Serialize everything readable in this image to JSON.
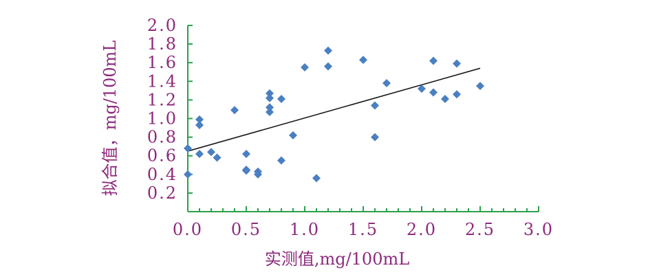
{
  "chart_data": {
    "type": "scatter",
    "xlabel": "实测值,mg/100mL",
    "ylabel": "拟合值，mg/100mL",
    "xlim": [
      0,
      3.0
    ],
    "ylim": [
      0,
      2.0
    ],
    "x_ticks": [
      "0.0",
      "0.5",
      "1.0",
      "1.5",
      "2.0",
      "2.5",
      "3.0"
    ],
    "y_ticks": [
      "0.2",
      "0.4",
      "0.6",
      "0.8",
      "1.0",
      "1.2",
      "1.4",
      "1.6",
      "1.8",
      "2.0"
    ],
    "grid": false,
    "colors": {
      "marker": "#4a7fc1",
      "trendline": "#1a1a1a",
      "axis": "#2aa04a",
      "text": "#8e2a7c"
    },
    "trendline": {
      "x": [
        0.0,
        2.5
      ],
      "y": [
        0.65,
        1.54
      ]
    },
    "series": [
      {
        "x": [
          0.0,
          0.0,
          0.1,
          0.1,
          0.1,
          0.2,
          0.25,
          0.4,
          0.5,
          0.5,
          0.5,
          0.6,
          0.6,
          0.7,
          0.7,
          0.7,
          0.7,
          0.8,
          0.8,
          0.9,
          1.0,
          1.1,
          1.2,
          1.2,
          1.5,
          1.6,
          1.6,
          1.7,
          2.0,
          2.1,
          2.1,
          2.2,
          2.3,
          2.3,
          2.5
        ],
        "y": [
          0.68,
          0.4,
          0.99,
          0.93,
          0.62,
          0.64,
          0.58,
          1.09,
          0.62,
          0.45,
          0.44,
          0.43,
          0.4,
          1.27,
          1.22,
          1.12,
          1.07,
          1.21,
          0.55,
          0.82,
          1.55,
          0.36,
          1.73,
          1.56,
          1.63,
          0.8,
          1.14,
          1.38,
          1.32,
          1.62,
          1.28,
          1.21,
          1.59,
          1.26,
          1.35
        ]
      }
    ]
  }
}
